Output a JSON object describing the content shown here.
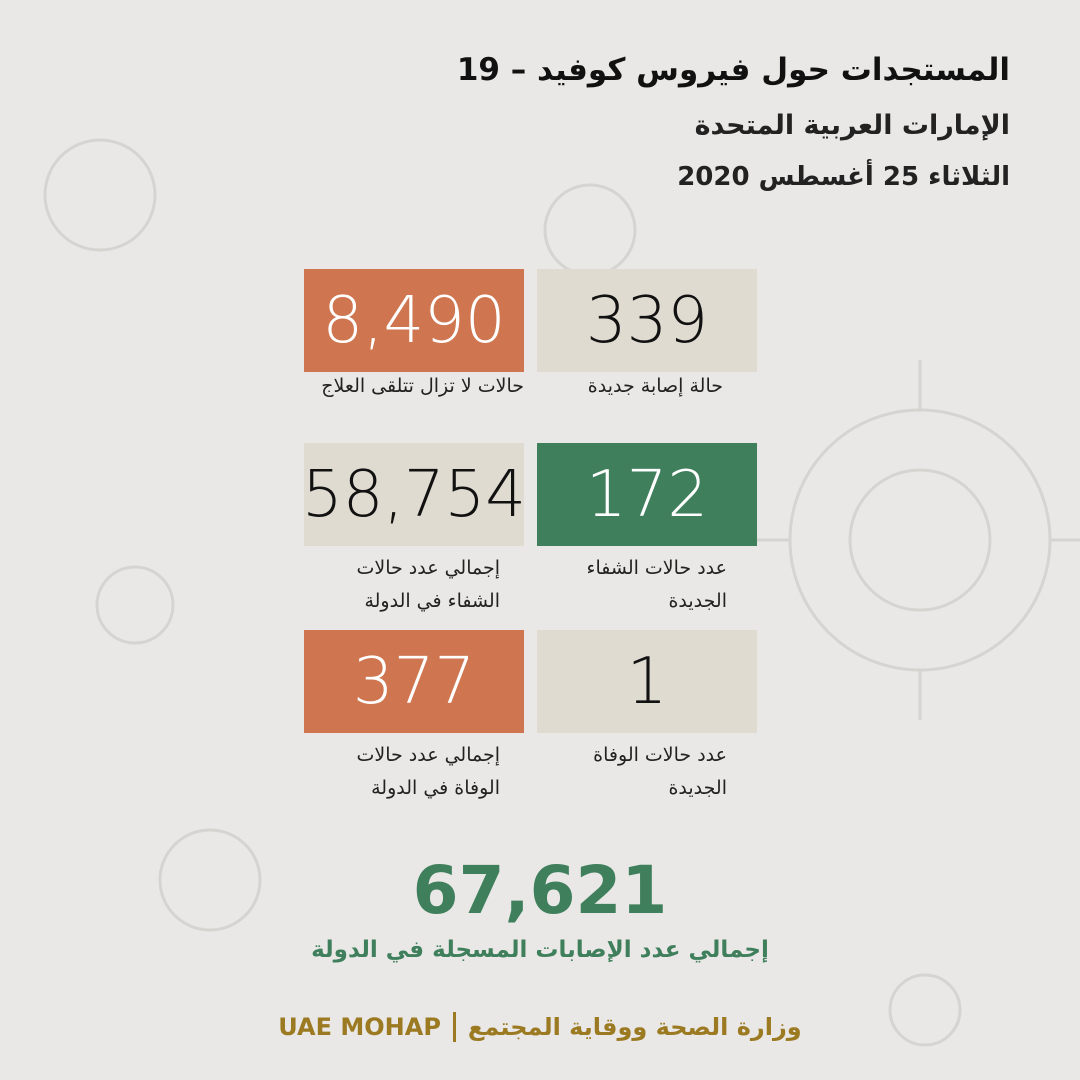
{
  "header": {
    "title": "المستجدات حول فيروس كوفيد – 19",
    "subtitle": "الإمارات العربية المتحدة",
    "date": "الثلاثاء  25 أغسطس 2020"
  },
  "cards": [
    {
      "value": "339",
      "label": [
        "حالة إصابة جديدة"
      ]
    },
    {
      "value": "8,490",
      "label": [
        "حالات لا تزال تتلقى العلاج"
      ]
    },
    {
      "value": "172",
      "label": [
        "عدد حالات الشفاء",
        "الجديدة"
      ]
    },
    {
      "value": "58,754",
      "label": [
        "إجمالي عدد حالات",
        "الشفاء في الدولة"
      ]
    },
    {
      "value": "1",
      "label": [
        "عدد حالات الوفاة",
        "الجديدة"
      ]
    },
    {
      "value": "377",
      "label": [
        "إجمالي عدد حالات",
        "الوفاة في الدولة"
      ]
    }
  ],
  "total": {
    "value": "67,621",
    "label": "إجمالي عدد الإصابات المسجلة في الدولة"
  },
  "footer": {
    "org_en": "UAE MOHAP",
    "org_ar": "وزارة الصحة ووقاية المجتمع"
  }
}
